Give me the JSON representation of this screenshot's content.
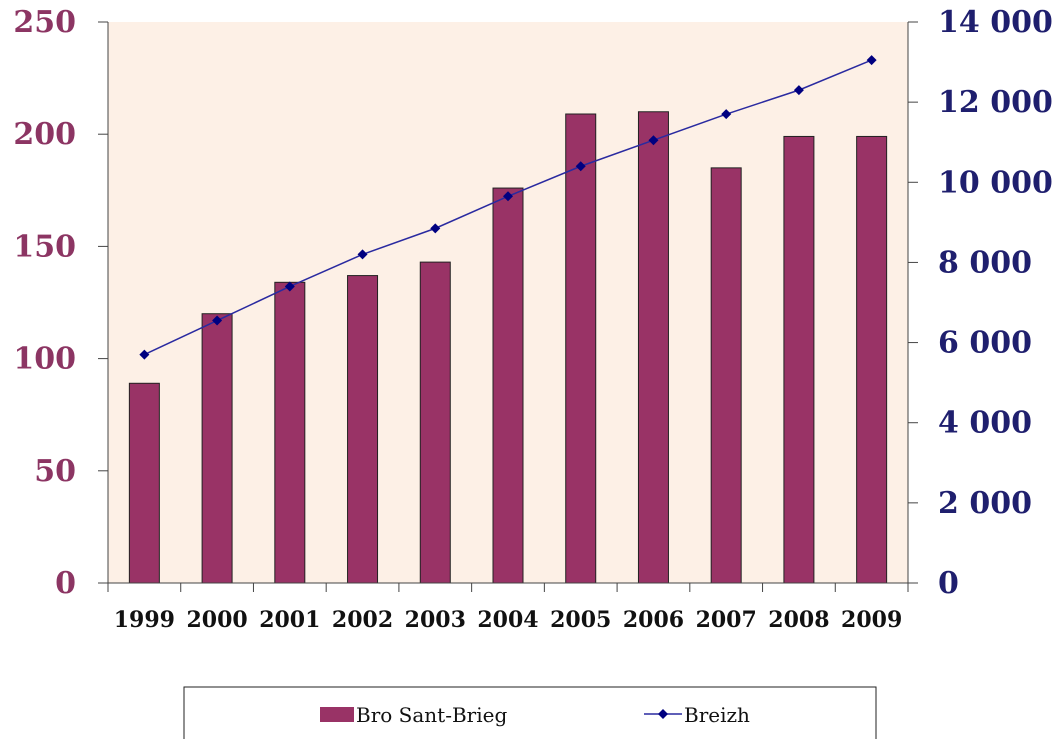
{
  "chart_data": {
    "type": "bar",
    "categories": [
      "1999",
      "2000",
      "2001",
      "2002",
      "2003",
      "2004",
      "2005",
      "2006",
      "2007",
      "2008",
      "2009"
    ],
    "series": [
      {
        "name": "Bro Sant-Brieg",
        "type": "bar",
        "axis": "left",
        "color": "#993366",
        "values": [
          89,
          120,
          134,
          137,
          143,
          176,
          209,
          210,
          185,
          199,
          199
        ]
      },
      {
        "name": "Breizh",
        "type": "line",
        "axis": "right",
        "color": "#000080",
        "values": [
          5700,
          6550,
          7400,
          8200,
          8850,
          9650,
          10400,
          11050,
          11700,
          12300,
          13050
        ]
      }
    ],
    "y_left": {
      "lim": [
        0,
        250
      ],
      "ticks": [
        0,
        50,
        100,
        150,
        200,
        250
      ],
      "tick_labels": [
        "0",
        "50",
        "100",
        "150",
        "200",
        "250"
      ]
    },
    "y_right": {
      "lim": [
        0,
        14000
      ],
      "ticks": [
        0,
        2000,
        4000,
        6000,
        8000,
        10000,
        12000,
        14000
      ],
      "tick_labels": [
        "0",
        "2 000",
        "4 000",
        "6 000",
        "8 000",
        "10 000",
        "12 000",
        "14 000"
      ]
    },
    "title": "",
    "xlabel": "",
    "ylabel": "",
    "grid": false,
    "legend": "bottom",
    "plot_background": "#fdf0e6"
  }
}
